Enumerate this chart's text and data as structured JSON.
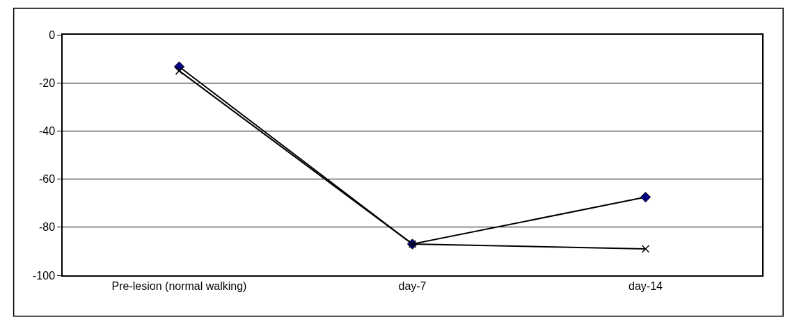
{
  "chart_data": {
    "type": "line",
    "categories": [
      "Pre-lesion (normal walking)",
      "day-7",
      "day-14"
    ],
    "series": [
      {
        "color": "#000080",
        "marker": "diamond",
        "values": [
          -13.3,
          -87,
          -67.5
        ]
      },
      {
        "color": "#000000",
        "marker": "cross",
        "values": [
          -15,
          -87,
          -89
        ]
      }
    ],
    "ylim": [
      -100,
      0
    ],
    "yticks": [
      -100,
      -80,
      -60,
      -40,
      -20,
      0
    ],
    "grid": "y",
    "line_style": "solid"
  }
}
